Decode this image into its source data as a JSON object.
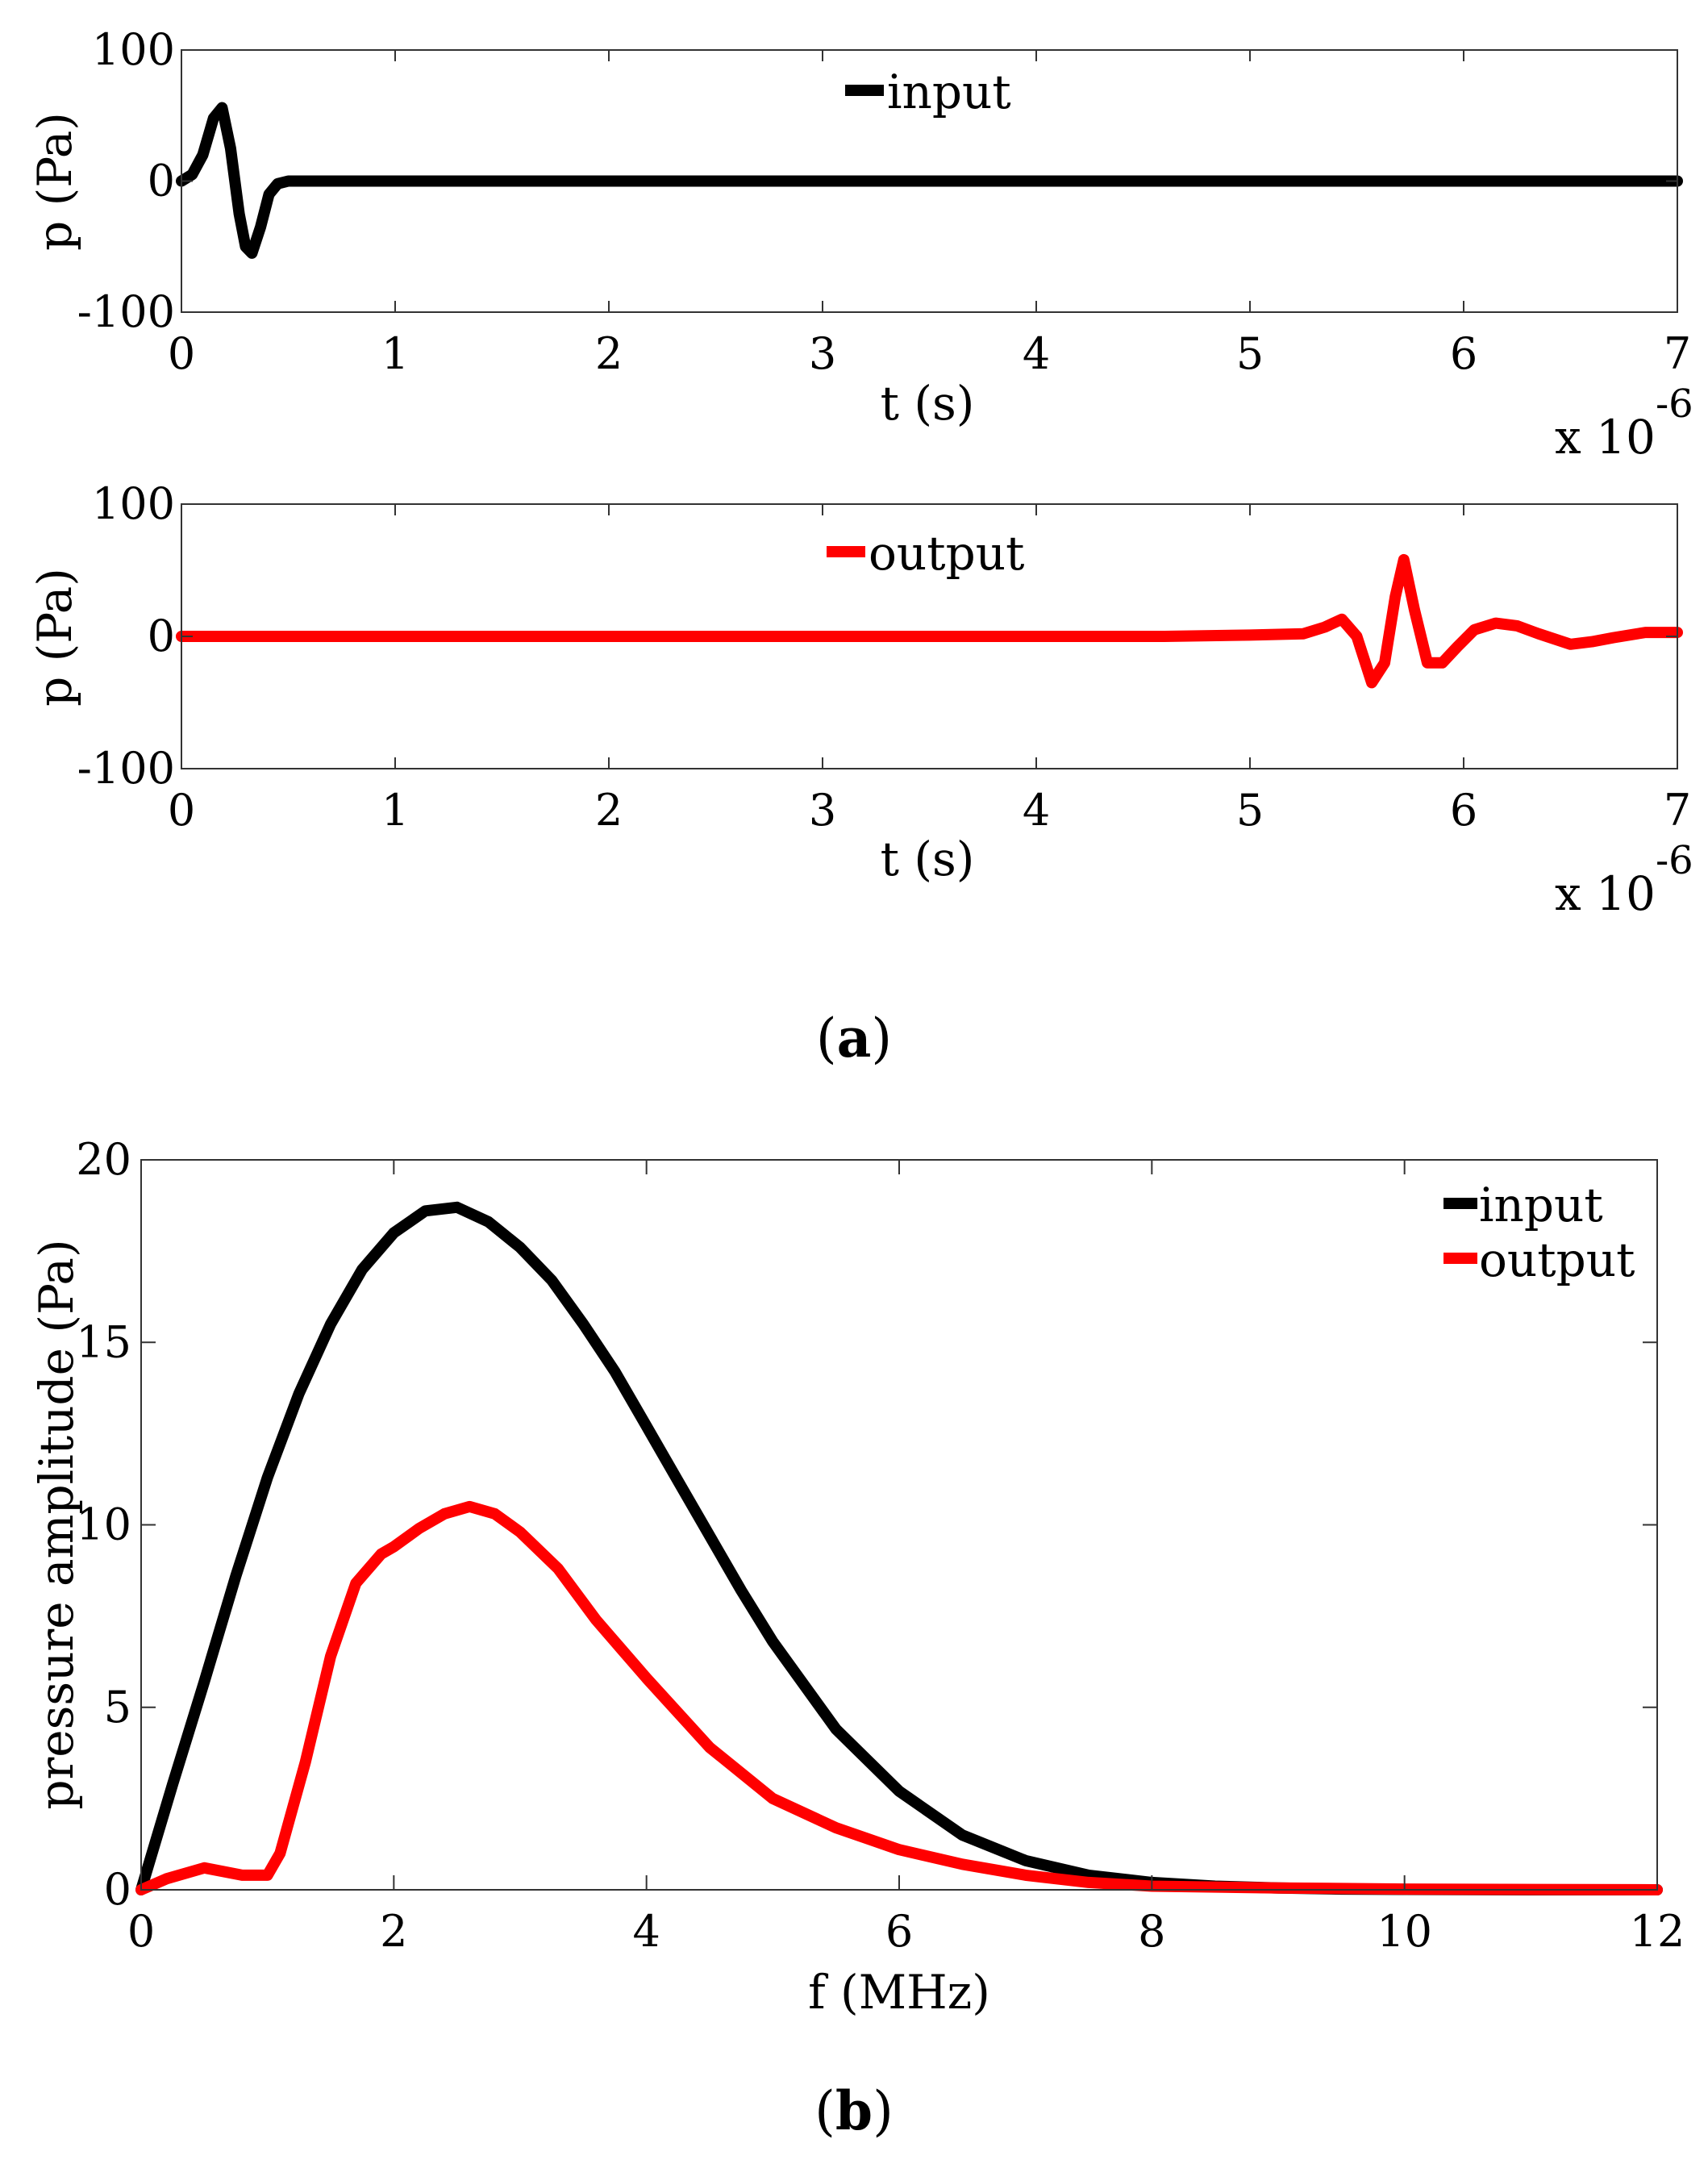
{
  "figure_labels": {
    "a": "a",
    "b": "b"
  },
  "colors": {
    "input": "#000000",
    "output": "#ff0000"
  },
  "chart_data": [
    {
      "id": "a-top",
      "type": "line",
      "title": "",
      "xlabel": "t (s)",
      "ylabel": "p (Pa)",
      "x_scale_label": "x 10",
      "x_scale_exponent": "-6",
      "xlim": [
        0,
        7
      ],
      "ylim": [
        -100,
        100
      ],
      "xticks": [
        0,
        1,
        2,
        3,
        4,
        5,
        6,
        7
      ],
      "yticks": [
        -100,
        0,
        100
      ],
      "legend": "top-center",
      "series": [
        {
          "name": "input",
          "color": "#000000",
          "x": [
            0,
            0.05,
            0.1,
            0.15,
            0.19,
            0.23,
            0.27,
            0.3,
            0.33,
            0.37,
            0.41,
            0.45,
            0.5,
            0.55,
            0.7,
            1.0,
            2.0,
            3.0,
            4.0,
            5.0,
            6.0,
            7.0
          ],
          "y": [
            0,
            5,
            20,
            48,
            56,
            25,
            -25,
            -50,
            -55,
            -35,
            -10,
            -2,
            0,
            0,
            0,
            0,
            0,
            0,
            0,
            0,
            0,
            0
          ]
        }
      ]
    },
    {
      "id": "a-bottom",
      "type": "line",
      "title": "",
      "xlabel": "t (s)",
      "ylabel": "p (Pa)",
      "x_scale_label": "x 10",
      "x_scale_exponent": "-6",
      "xlim": [
        0,
        7
      ],
      "ylim": [
        -100,
        100
      ],
      "xticks": [
        0,
        1,
        2,
        3,
        4,
        5,
        6,
        7
      ],
      "yticks": [
        -100,
        0,
        100
      ],
      "legend": "top-center",
      "series": [
        {
          "name": "output",
          "color": "#ff0000",
          "x": [
            0,
            1,
            2,
            3,
            4,
            4.6,
            5.0,
            5.25,
            5.35,
            5.43,
            5.5,
            5.57,
            5.63,
            5.68,
            5.72,
            5.77,
            5.83,
            5.9,
            5.97,
            6.05,
            6.15,
            6.25,
            6.35,
            6.5,
            6.6,
            6.7,
            6.85,
            7.0
          ],
          "y": [
            0,
            0,
            0,
            0,
            0,
            0,
            1,
            2,
            7,
            13,
            0,
            -35,
            -20,
            30,
            58,
            20,
            -20,
            -20,
            -8,
            5,
            10,
            8,
            2,
            -6,
            -4,
            -1,
            3,
            3
          ]
        }
      ]
    },
    {
      "id": "b",
      "type": "line",
      "title": "",
      "xlabel": "f (MHz)",
      "ylabel": "pressure amplitude (Pa)",
      "xlim": [
        0,
        12
      ],
      "ylim": [
        0,
        20
      ],
      "xticks": [
        0,
        2,
        4,
        6,
        8,
        10,
        12
      ],
      "yticks": [
        0,
        5,
        10,
        15,
        20
      ],
      "legend": "top-right",
      "series": [
        {
          "name": "input",
          "color": "#000000",
          "x": [
            0,
            0.25,
            0.5,
            0.75,
            1.0,
            1.25,
            1.5,
            1.75,
            2.0,
            2.25,
            2.5,
            2.75,
            3.0,
            3.25,
            3.5,
            3.75,
            4.0,
            4.25,
            4.5,
            4.75,
            5.0,
            5.5,
            6.0,
            6.5,
            7.0,
            7.5,
            8.0,
            8.5,
            9.0,
            9.5,
            10.0,
            11.0,
            12.0
          ],
          "y": [
            0,
            2.9,
            5.7,
            8.6,
            11.3,
            13.6,
            15.5,
            17.0,
            18.0,
            18.6,
            18.7,
            18.3,
            17.6,
            16.7,
            15.5,
            14.2,
            12.7,
            11.2,
            9.7,
            8.2,
            6.8,
            4.4,
            2.7,
            1.5,
            0.8,
            0.4,
            0.2,
            0.1,
            0.05,
            0.02,
            0.01,
            0,
            0
          ]
        },
        {
          "name": "output",
          "color": "#ff0000",
          "x": [
            0,
            0.2,
            0.5,
            0.8,
            1.0,
            1.1,
            1.3,
            1.5,
            1.7,
            1.9,
            2.0,
            2.2,
            2.4,
            2.6,
            2.8,
            3.0,
            3.3,
            3.6,
            4.0,
            4.5,
            5.0,
            5.5,
            6.0,
            6.5,
            7.0,
            7.5,
            8.0,
            9.0,
            10.0,
            12.0
          ],
          "y": [
            0,
            0.3,
            0.6,
            0.4,
            0.4,
            1.0,
            3.5,
            6.4,
            8.4,
            9.2,
            9.4,
            9.9,
            10.3,
            10.5,
            10.3,
            9.8,
            8.8,
            7.4,
            5.8,
            3.9,
            2.5,
            1.7,
            1.1,
            0.7,
            0.4,
            0.2,
            0.1,
            0.05,
            0.02,
            0
          ]
        }
      ]
    }
  ]
}
